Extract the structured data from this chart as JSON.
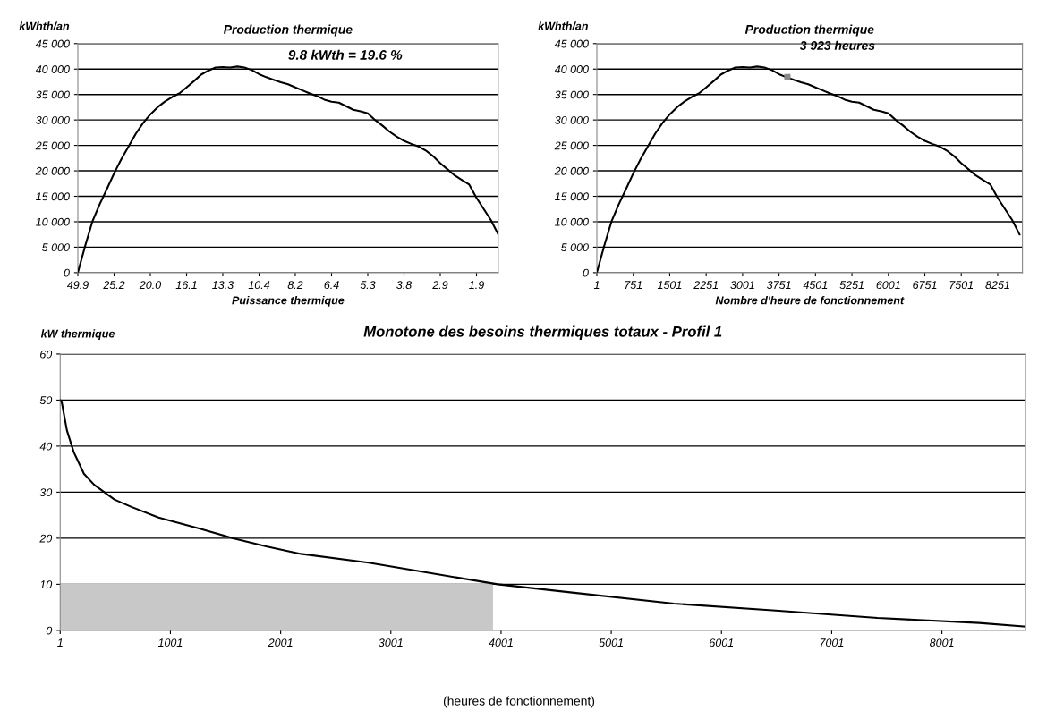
{
  "chart_data": [
    {
      "type": "line",
      "title": "Production thermique",
      "xlabel": "Puissance thermique",
      "ylabel": "kWhth/an",
      "categories": [
        "49.9",
        null,
        null,
        null,
        null,
        "25.2",
        null,
        null,
        null,
        null,
        "20.0",
        null,
        null,
        null,
        null,
        "16.1",
        null,
        null,
        null,
        null,
        "13.3",
        null,
        null,
        null,
        null,
        "10.4",
        null,
        null,
        null,
        null,
        "8.2",
        null,
        null,
        null,
        null,
        "6.4",
        null,
        null,
        null,
        null,
        "5.3",
        null,
        null,
        null,
        null,
        "3.8",
        null,
        null,
        null,
        null,
        "2.9",
        null,
        null,
        null,
        null,
        "1.9",
        null,
        null,
        null
      ],
      "series": [
        {
          "color": "#000000",
          "values": [
            0,
            5200,
            10000,
            13400,
            16400,
            19500,
            22300,
            24800,
            27300,
            29400,
            31100,
            32500,
            33600,
            34500,
            35200,
            36400,
            37600,
            38900,
            39700,
            40300,
            40400,
            40300,
            40500,
            40300,
            39800,
            39000,
            38400,
            37900,
            37400,
            37000,
            36400,
            35800,
            35200,
            34700,
            34000,
            33600,
            33400,
            32700,
            32000,
            31700,
            31300,
            30000,
            28900,
            27700,
            26700,
            25900,
            25300,
            24800,
            24000,
            22900,
            21500,
            20300,
            19100,
            18200,
            17300,
            14700,
            12500,
            10300,
            7500
          ]
        }
      ],
      "ylim": [
        0,
        45000
      ],
      "yticks": [
        {
          "value": 0,
          "label": "0"
        },
        {
          "value": 5000,
          "label": "5 000"
        },
        {
          "value": 10000,
          "label": "10 000"
        },
        {
          "value": 15000,
          "label": "15 000"
        },
        {
          "value": 20000,
          "label": "20 000"
        },
        {
          "value": 25000,
          "label": "25 000"
        },
        {
          "value": 30000,
          "label": "30 000"
        },
        {
          "value": 35000,
          "label": "35 000"
        },
        {
          "value": 40000,
          "label": "40 000"
        },
        {
          "value": 45000,
          "label": "45 000"
        }
      ],
      "grid": "y",
      "annotations": [
        "9.8 kWth = 19.6 %"
      ]
    },
    {
      "type": "line",
      "title": "Production thermique",
      "xlabel": "Nombre d'heure de fonctionnement",
      "ylabel": "kWhth/an",
      "x": [
        1,
        151,
        301,
        451,
        601,
        751,
        901,
        1051,
        1201,
        1351,
        1501,
        1651,
        1801,
        1951,
        2101,
        2251,
        2401,
        2551,
        2701,
        2851,
        3001,
        3151,
        3301,
        3451,
        3601,
        3751,
        3901,
        4051,
        4201,
        4351,
        4501,
        4651,
        4801,
        4951,
        5101,
        5251,
        5401,
        5551,
        5701,
        5851,
        6001,
        6151,
        6301,
        6451,
        6601,
        6751,
        6901,
        7051,
        7201,
        7351,
        7501,
        7651,
        7801,
        7951,
        8101,
        8251,
        8401,
        8551,
        8701
      ],
      "series": [
        {
          "color": "#000000",
          "values": [
            0,
            5200,
            10000,
            13400,
            16400,
            19500,
            22300,
            24800,
            27300,
            29400,
            31100,
            32500,
            33600,
            34500,
            35200,
            36400,
            37600,
            38900,
            39700,
            40300,
            40400,
            40300,
            40500,
            40300,
            39800,
            39000,
            38400,
            37900,
            37400,
            37000,
            36400,
            35800,
            35200,
            34700,
            34000,
            33600,
            33400,
            32700,
            32000,
            31700,
            31300,
            30000,
            28900,
            27700,
            26700,
            25900,
            25300,
            24800,
            24000,
            22900,
            21500,
            20300,
            19100,
            18200,
            17300,
            14700,
            12500,
            10300,
            7500
          ]
        }
      ],
      "xlim": [
        1,
        8760
      ],
      "xticks": [
        1,
        751,
        1501,
        2251,
        3001,
        3751,
        4501,
        5251,
        6001,
        6751,
        7501,
        8251
      ],
      "ylim": [
        0,
        45000
      ],
      "yticks": [
        {
          "value": 0,
          "label": "0"
        },
        {
          "value": 5000,
          "label": "5 000"
        },
        {
          "value": 10000,
          "label": "10 000"
        },
        {
          "value": 15000,
          "label": "15 000"
        },
        {
          "value": 20000,
          "label": "20 000"
        },
        {
          "value": 25000,
          "label": "25 000"
        },
        {
          "value": 30000,
          "label": "30 000"
        },
        {
          "value": 35000,
          "label": "35 000"
        },
        {
          "value": 40000,
          "label": "40 000"
        },
        {
          "value": 45000,
          "label": "45 000"
        }
      ],
      "grid": "y",
      "annotations": [
        {
          "text": "3 923 heures",
          "x": 3923,
          "y": 38400
        }
      ]
    },
    {
      "type": "line",
      "title": "Monotone des besoins thermiques totaux - Profil 1",
      "ylabel": "kW thermique",
      "series": [
        {
          "x": [
            1,
            13,
            62,
            124,
            216,
            309,
            401,
            493,
            647,
            893,
            1262,
            1570,
            1878,
            2185,
            2800,
            3416,
            3970,
            4646,
            5570,
            6493,
            7416,
            8339,
            8760
          ],
          "color": "#000000",
          "values": [
            50,
            49.8,
            43.4,
            38.7,
            34,
            31.6,
            30,
            28.4,
            26.8,
            24.5,
            22.1,
            20,
            18.2,
            16.6,
            14.7,
            12.2,
            10,
            8.2,
            5.8,
            4.3,
            2.7,
            1.6,
            0.8
          ]
        },
        {
          "type": "area",
          "x": [
            1,
            3923
          ],
          "color": "#c8c8c8",
          "values": [
            10,
            10
          ]
        }
      ],
      "xlim": [
        1,
        8760
      ],
      "xticks": [
        1,
        1001,
        2001,
        3001,
        4001,
        5001,
        6001,
        7001,
        8001
      ],
      "ylim": [
        0,
        60
      ],
      "yticks": [
        0,
        10,
        20,
        30,
        40,
        50,
        60
      ],
      "grid": "y",
      "annotations": [
        "(heures de fonctionnement)"
      ]
    }
  ]
}
